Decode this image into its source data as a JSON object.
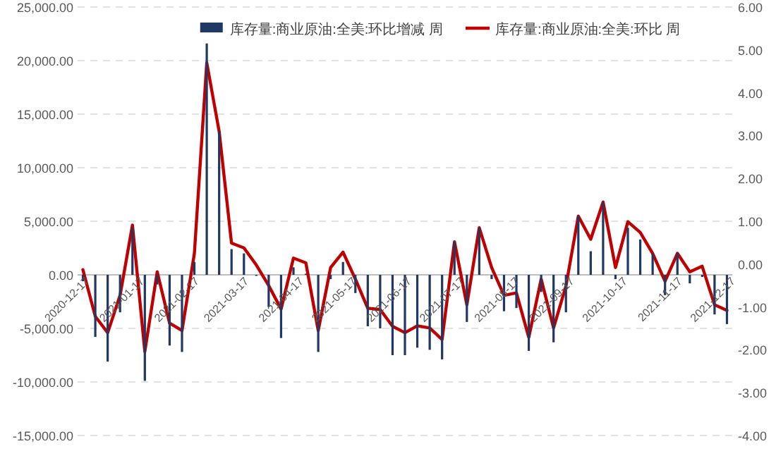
{
  "chart_data": {
    "type": "bar",
    "legend": "top",
    "grid": "y",
    "x": [
      "2020-12-17",
      "2020-12-24",
      "2020-12-31",
      "2021-01-07",
      "2021-01-14",
      "2021-01-21",
      "2021-01-28",
      "2021-02-04",
      "2021-02-11",
      "2021-02-18",
      "2021-02-25",
      "2021-03-04",
      "2021-03-11",
      "2021-03-18",
      "2021-03-25",
      "2021-04-01",
      "2021-04-08",
      "2021-04-15",
      "2021-04-22",
      "2021-04-29",
      "2021-05-06",
      "2021-05-13",
      "2021-05-20",
      "2021-05-27",
      "2021-06-03",
      "2021-06-10",
      "2021-06-17",
      "2021-06-24",
      "2021-07-01",
      "2021-07-08",
      "2021-07-15",
      "2021-07-22",
      "2021-07-29",
      "2021-08-05",
      "2021-08-12",
      "2021-08-19",
      "2021-08-26",
      "2021-09-02",
      "2021-09-09",
      "2021-09-16",
      "2021-09-23",
      "2021-09-30",
      "2021-10-07",
      "2021-10-14",
      "2021-10-21",
      "2021-10-28",
      "2021-11-04",
      "2021-11-11",
      "2021-11-18",
      "2021-11-25",
      "2021-12-02",
      "2021-12-09",
      "2021-12-16"
    ],
    "series": [
      {
        "name": "库存量:商业原油:全美:环比增减 周",
        "color": "#1f3864",
        "values": [
          -600,
          -5800,
          -8100,
          -3500,
          4400,
          -9900,
          -900,
          -6600,
          -7200,
          1200,
          21600,
          13400,
          2400,
          2000,
          -100,
          -3000,
          -5900,
          700,
          100,
          -7200,
          -400,
          1200,
          -1700,
          -4800,
          -5000,
          -7500,
          -7500,
          -6800,
          -7000,
          -7900,
          3100,
          -4400,
          4400,
          -400,
          -3400,
          -3100,
          -7100,
          -1600,
          -6300,
          -3500,
          5500,
          2200,
          6800,
          -400,
          4400,
          3300,
          2000,
          -1900,
          2000,
          -800,
          -200,
          -3700,
          -4600
        ]
      },
      {
        "name": "库存量:商业原油:全美:环比 周",
        "type": "line",
        "axis": "y2",
        "color": "#c00000",
        "values": [
          -0.13,
          -1.22,
          -1.6,
          -0.73,
          0.91,
          -2.04,
          -0.18,
          -1.38,
          -1.55,
          0.25,
          4.7,
          3.1,
          0.49,
          0.38,
          -0.02,
          -0.5,
          -1.05,
          0.14,
          0.03,
          -1.55,
          -0.08,
          0.28,
          -0.35,
          -1.03,
          -1.06,
          -1.45,
          -1.6,
          -1.44,
          -1.49,
          -1.76,
          0.52,
          -0.95,
          0.85,
          -0.08,
          -0.73,
          -0.67,
          -1.71,
          -0.35,
          -1.49,
          -0.51,
          1.12,
          0.58,
          1.45,
          -0.08,
          0.99,
          0.74,
          0.25,
          -0.4,
          0.25,
          -0.18,
          -0.05,
          -0.95,
          -1.08
        ]
      }
    ],
    "xlim": [
      "2020-12-14",
      "2021-12-19"
    ],
    "xticks": [
      {
        "value": "2020-12-17",
        "label": "2020-12-17"
      },
      {
        "value": "2021-01-17",
        "label": "2021-01-17"
      },
      {
        "value": "2021-02-17",
        "label": "2021-02-17"
      },
      {
        "value": "2021-03-17",
        "label": "2021-03-17"
      },
      {
        "value": "2021-04-17",
        "label": "2021-04-17"
      },
      {
        "value": "2021-05-17",
        "label": "2021-05-17"
      },
      {
        "value": "2021-06-17",
        "label": "2021-06-17"
      },
      {
        "value": "2021-07-17",
        "label": "2021-07-17"
      },
      {
        "value": "2021-08-17",
        "label": "2021-08-17"
      },
      {
        "value": "2021-09-17",
        "label": "2021-09-17"
      },
      {
        "value": "2021-10-17",
        "label": "2021-10-17"
      },
      {
        "value": "2021-11-17",
        "label": "2021-11-17"
      },
      {
        "value": "2021-12-17",
        "label": "2021-12-17"
      }
    ],
    "ylim": [
      -15000,
      25000
    ],
    "yticks": [
      {
        "value": -15000,
        "label": "-15,000.00"
      },
      {
        "value": -10000,
        "label": "-10,000.00"
      },
      {
        "value": -5000,
        "label": "-5,000.00"
      },
      {
        "value": 0,
        "label": "0.00"
      },
      {
        "value": 5000,
        "label": "5,000.00"
      },
      {
        "value": 10000,
        "label": "10,000.00"
      },
      {
        "value": 15000,
        "label": "15,000.00"
      },
      {
        "value": 20000,
        "label": "20,000.00"
      },
      {
        "value": 25000,
        "label": "25,000.00"
      }
    ],
    "y2lim": [
      -4,
      6
    ],
    "y2ticks": [
      {
        "value": -4,
        "label": "-4.00"
      },
      {
        "value": -3,
        "label": "-3.00"
      },
      {
        "value": -2,
        "label": "-2.00"
      },
      {
        "value": -1,
        "label": "-1.00"
      },
      {
        "value": 0,
        "label": "0.00"
      },
      {
        "value": 1,
        "label": "1.00"
      },
      {
        "value": 2,
        "label": "2.00"
      },
      {
        "value": 3,
        "label": "3.00"
      },
      {
        "value": 4,
        "label": "4.00"
      },
      {
        "value": 5,
        "label": "5.00"
      },
      {
        "value": 6,
        "label": "6.00"
      }
    ]
  }
}
